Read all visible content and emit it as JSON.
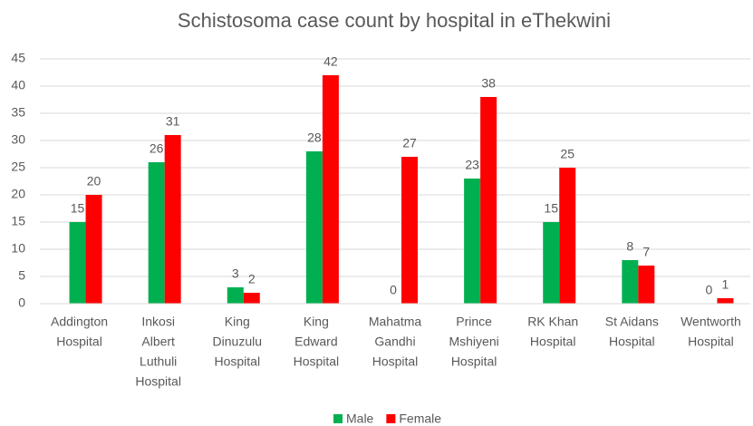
{
  "chart_data": {
    "type": "bar",
    "title": "Schistosoma case count by hospital in eThekwini",
    "categories": [
      [
        "Addington",
        "Hospital"
      ],
      [
        "Inkosi",
        "Albert",
        "Luthuli",
        "Hospital"
      ],
      [
        "King",
        "Dinuzulu",
        "Hospital"
      ],
      [
        "King",
        "Edward",
        "Hospital"
      ],
      [
        "Mahatma",
        "Gandhi",
        "Hospital"
      ],
      [
        "Prince",
        "Mshiyeni",
        "Hospital"
      ],
      [
        "RK Khan",
        "Hospital"
      ],
      [
        "St Aidans",
        "Hospital"
      ],
      [
        "Wentworth",
        "Hospital"
      ]
    ],
    "series": [
      {
        "name": "Male",
        "color": "#00b050",
        "values": [
          15,
          26,
          3,
          28,
          0,
          23,
          15,
          8,
          0
        ]
      },
      {
        "name": "Female",
        "color": "#ff0000",
        "values": [
          20,
          31,
          2,
          42,
          27,
          38,
          25,
          7,
          1
        ]
      }
    ],
    "ylim": [
      0,
      45
    ],
    "yticks": [
      0,
      5,
      10,
      15,
      20,
      25,
      30,
      35,
      40,
      45
    ],
    "grid": true,
    "legend": "bottom"
  }
}
